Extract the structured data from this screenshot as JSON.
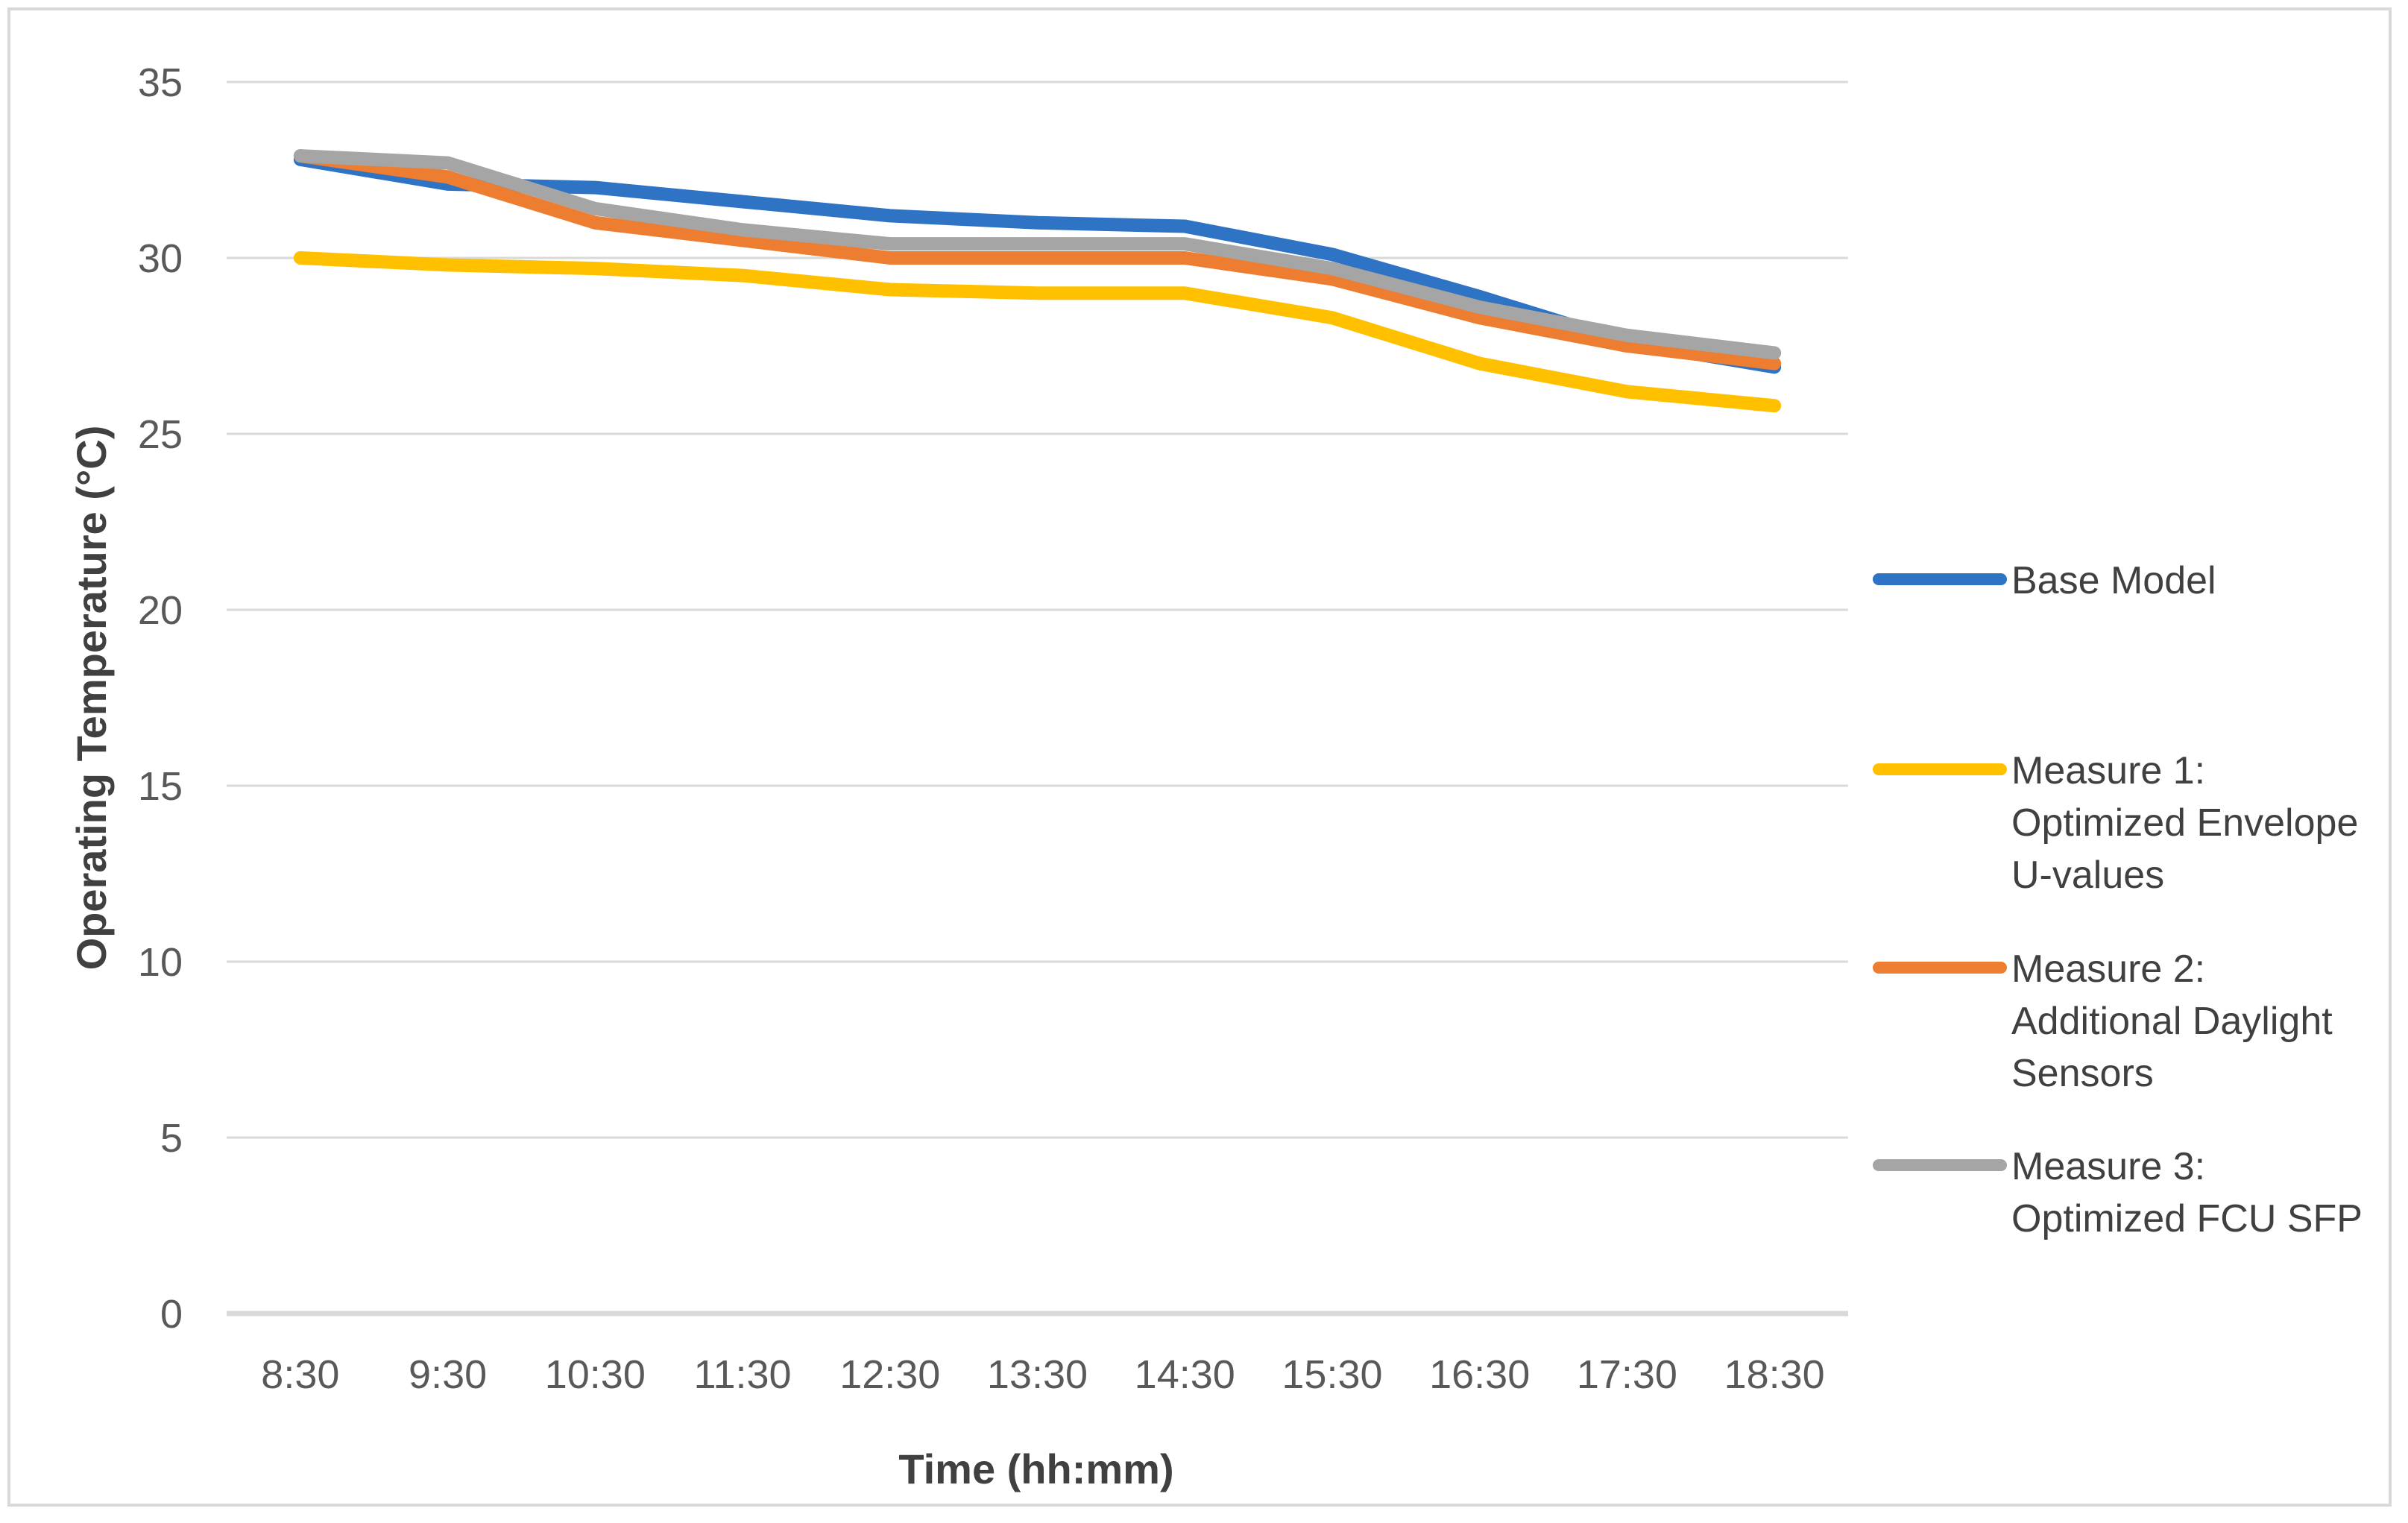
{
  "chart": {
    "y_axis": {
      "title": "Operating Temperature (°C)",
      "ticks": [
        35,
        30,
        25,
        20,
        15,
        10,
        5,
        0
      ],
      "min": 0,
      "max": 35
    },
    "x_axis": {
      "title": "Time (hh:mm)"
    },
    "legend": [
      {
        "name": "Base Model",
        "lines": [
          "Base Model"
        ]
      },
      {
        "name": "Measure 1: Optimized Envelope U-values",
        "lines": [
          "Measure 1:",
          "Optimized Envelope",
          "U-values"
        ]
      },
      {
        "name": "Measure 2: Additional Daylight Sensors",
        "lines": [
          "Measure 2:",
          "Additional Daylight",
          "Sensors"
        ]
      },
      {
        "name": "Measure 3: Optimized FCU SFP",
        "lines": [
          "Measure 3:",
          "Optimized FCU SFP"
        ]
      }
    ],
    "colors": {
      "grid": "#D9D9D9",
      "axis_line": "#D9D9D9",
      "tick_text": "#595959",
      "title_text": "#404040",
      "legend_text": "#404040"
    }
  },
  "chart_data": {
    "type": "line",
    "title": "",
    "xlabel": "Time (hh:mm)",
    "ylabel": "Operating Temperature (°C)",
    "ylim": [
      0,
      35
    ],
    "y_tick_step": 5,
    "grid": true,
    "legend_position": "right",
    "categories": [
      "8:30",
      "9:30",
      "10:30",
      "11:30",
      "12:30",
      "13:30",
      "14:30",
      "15:30",
      "16:30",
      "17:30",
      "18:30"
    ],
    "series": [
      {
        "name": "Base Model",
        "color": "#2E73C4",
        "values": [
          32.8,
          32.1,
          32.0,
          31.6,
          31.2,
          31.0,
          30.9,
          30.1,
          28.9,
          27.6,
          26.9
        ]
      },
      {
        "name": "Measure 1: Optimized Envelope U-values",
        "color": "#FFC000",
        "values": [
          30.0,
          29.8,
          29.7,
          29.5,
          29.1,
          29.0,
          29.0,
          28.3,
          27.0,
          26.2,
          25.8
        ]
      },
      {
        "name": "Measure 2: Additional Daylight Sensors",
        "color": "#ED7D31",
        "values": [
          32.9,
          32.3,
          31.0,
          30.5,
          30.0,
          30.0,
          30.0,
          29.4,
          28.3,
          27.5,
          27.0
        ]
      },
      {
        "name": "Measure 3: Optimized FCU SFP",
        "color": "#A5A5A5",
        "values": [
          32.9,
          32.7,
          31.4,
          30.8,
          30.4,
          30.4,
          30.4,
          29.7,
          28.6,
          27.8,
          27.3
        ]
      }
    ]
  }
}
